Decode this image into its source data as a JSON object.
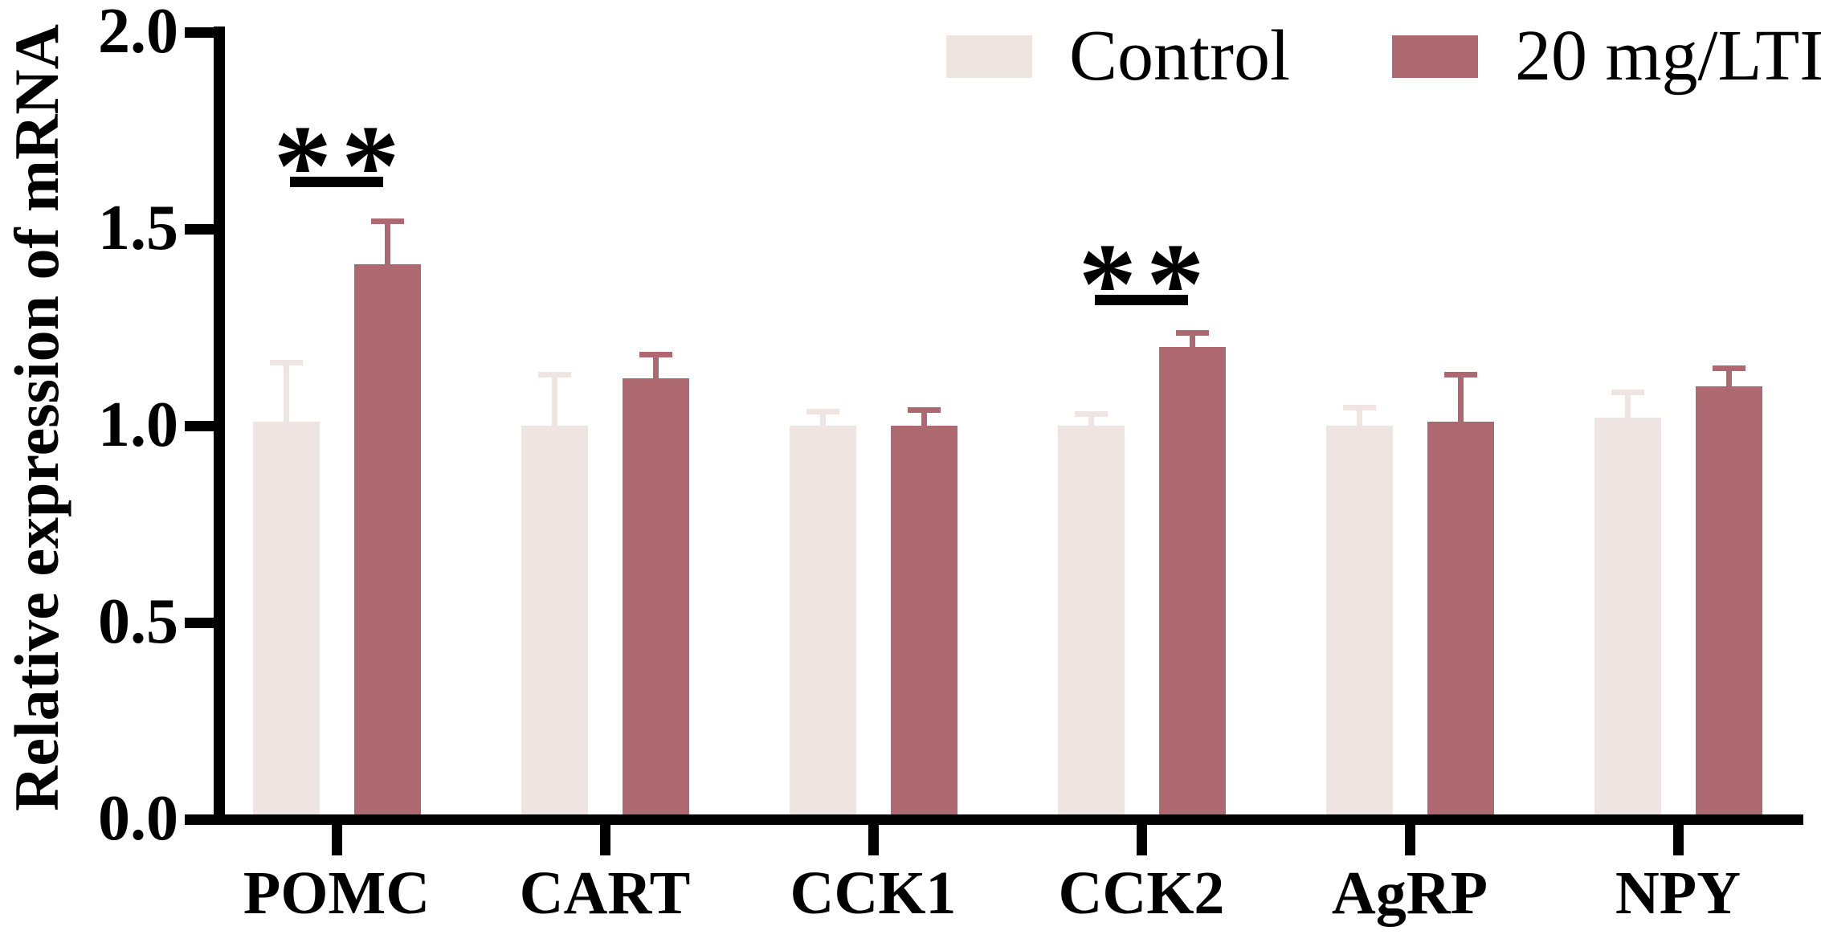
{
  "figure": {
    "background": "#ffffff",
    "axis_color": "#000000"
  },
  "chart_data": {
    "type": "bar",
    "title": "",
    "ylabel": "Relative expression of mRNA",
    "xlabel": "",
    "ylim": [
      0.0,
      2.0
    ],
    "yticks": [
      0.0,
      0.5,
      1.0,
      1.5,
      2.0
    ],
    "grid": false,
    "legend_position": "top-right",
    "categories": [
      "POMC",
      "CART",
      "CCK1",
      "CCK2",
      "AgRP",
      "NPY"
    ],
    "series": [
      {
        "name": "Control",
        "color": "#EEE5E2",
        "values": [
          1.01,
          1.0,
          1.0,
          1.0,
          1.0,
          1.02
        ],
        "errors": [
          0.15,
          0.13,
          0.035,
          0.03,
          0.045,
          0.065
        ]
      },
      {
        "name": "20 mg/LTI",
        "color": "#AE686F",
        "values": [
          1.41,
          1.12,
          1.0,
          1.2,
          1.01,
          1.1
        ],
        "errors": [
          0.11,
          0.06,
          0.04,
          0.035,
          0.12,
          0.045
        ]
      }
    ],
    "significance": [
      {
        "category": "POMC",
        "label": "**",
        "line_y": 1.62
      },
      {
        "category": "CCK2",
        "label": "**",
        "line_y": 1.32
      }
    ]
  }
}
